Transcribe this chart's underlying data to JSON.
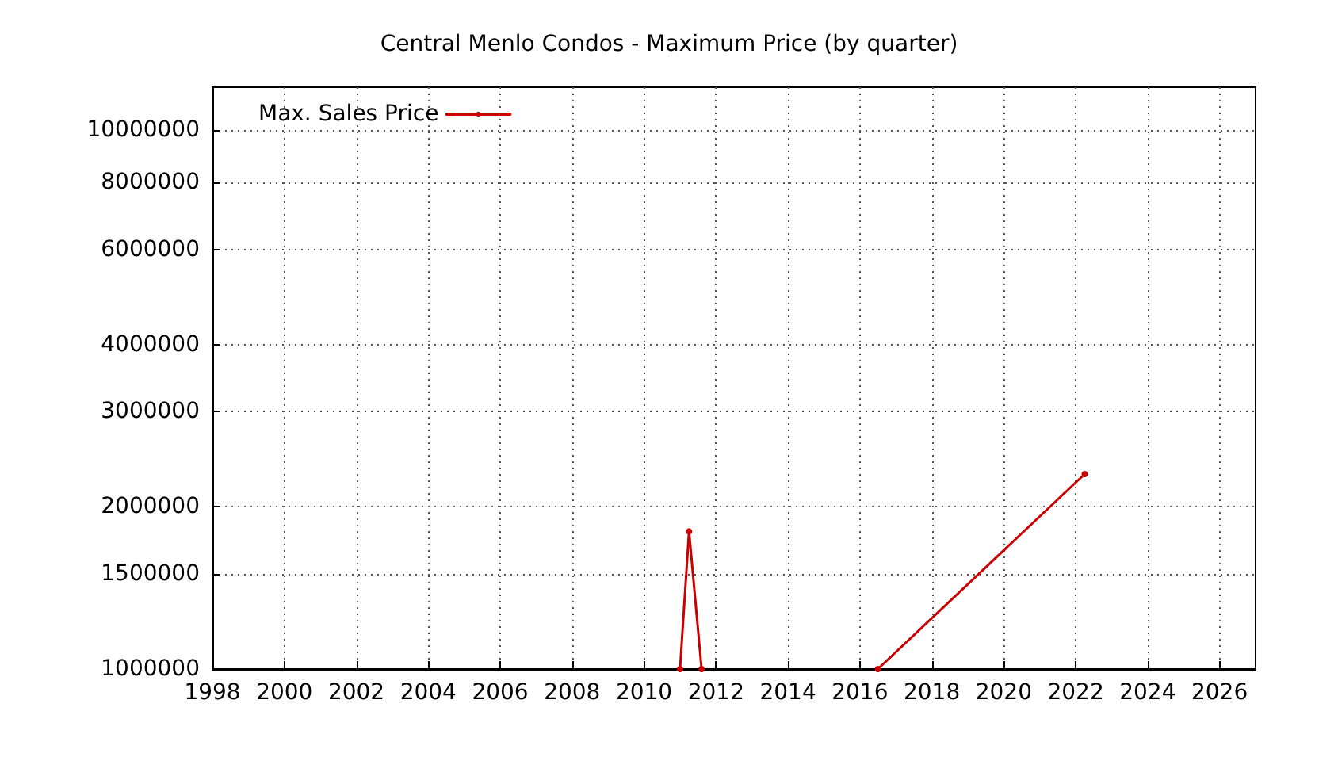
{
  "chart_data": {
    "type": "line",
    "title": "Central Menlo Condos - Maximum Price (by quarter)",
    "series": [
      {
        "name": "Max. Sales Price",
        "color": "#cc0000",
        "x": [
          2011.0,
          2011.25,
          2011.6,
          null,
          2016.5,
          2022.25
        ],
        "values": [
          1000000,
          1800000,
          1000000,
          null,
          1000000,
          2300000
        ]
      }
    ],
    "xlim": [
      1998,
      2027
    ],
    "xticks": [
      1998,
      2000,
      2002,
      2004,
      2006,
      2008,
      2010,
      2012,
      2014,
      2016,
      2018,
      2020,
      2022,
      2024,
      2026
    ],
    "ylim": [
      1000000,
      12000000
    ],
    "yticks": [
      1000000,
      1500000,
      2000000,
      3000000,
      4000000,
      6000000,
      8000000,
      10000000
    ],
    "log": "y",
    "grid": true,
    "legend": "top left",
    "marker": "circle",
    "line_style": "solid"
  }
}
